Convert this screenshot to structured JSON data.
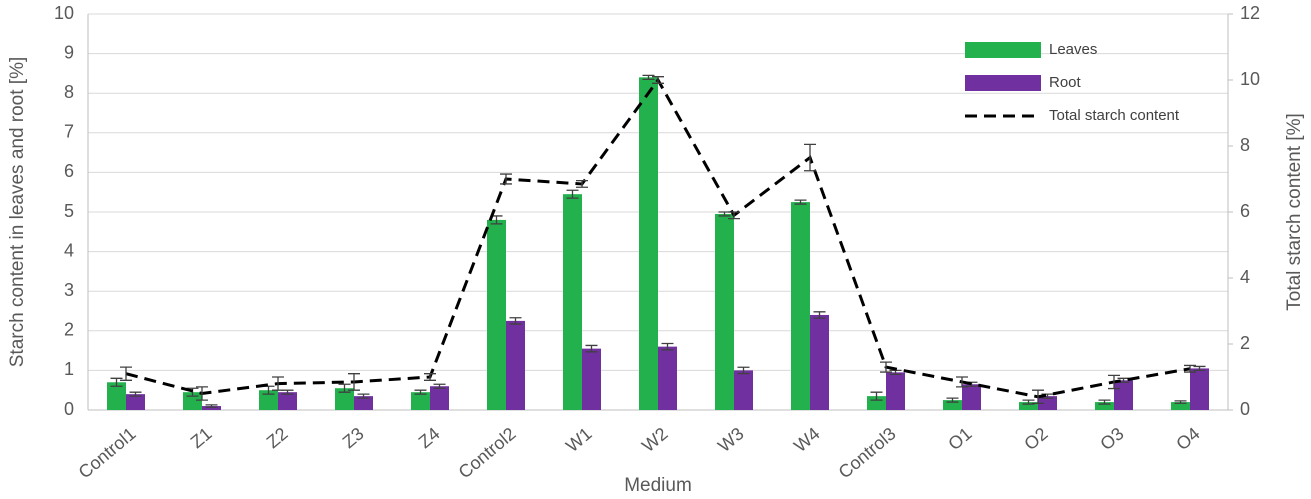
{
  "chart_data": {
    "type": "bar",
    "x_label": "Medium",
    "y_label": "Starch content in leaves and root [%]",
    "y2_label": "Total starch content [%]",
    "categories": [
      "Control1",
      "Z1",
      "Z2",
      "Z3",
      "Z4",
      "Control2",
      "W1",
      "W2",
      "W3",
      "W4",
      "Control3",
      "O1",
      "O2",
      "O3",
      "O4"
    ],
    "series": [
      {
        "name": "Leaves",
        "type": "bar",
        "color": "#22b14c",
        "values": [
          0.7,
          0.45,
          0.5,
          0.55,
          0.45,
          4.8,
          5.45,
          8.4,
          4.95,
          5.25,
          0.35,
          0.25,
          0.2,
          0.2,
          0.2
        ],
        "errors": [
          0.1,
          0.1,
          0.1,
          0.1,
          0.05,
          0.1,
          0.1,
          0.05,
          0.05,
          0.05,
          0.1,
          0.05,
          0.05,
          0.05,
          0.03
        ]
      },
      {
        "name": "Root",
        "type": "bar",
        "color": "#7030a0",
        "values": [
          0.4,
          0.1,
          0.45,
          0.35,
          0.6,
          2.25,
          1.55,
          1.6,
          1.0,
          2.4,
          0.95,
          0.65,
          0.35,
          0.75,
          1.05
        ],
        "errors": [
          0.05,
          0.03,
          0.05,
          0.05,
          0.05,
          0.08,
          0.08,
          0.08,
          0.08,
          0.08,
          0.05,
          0.05,
          0.05,
          0.05,
          0.05
        ]
      },
      {
        "name": "Total starch content",
        "type": "line",
        "axis": "y2",
        "color": "#000000",
        "dashed": true,
        "values": [
          1.1,
          0.5,
          0.8,
          0.85,
          1.0,
          7.0,
          6.85,
          10.0,
          5.9,
          7.65,
          1.3,
          0.85,
          0.4,
          0.85,
          1.25
        ],
        "errors": [
          0.2,
          0.2,
          0.2,
          0.25,
          0.1,
          0.15,
          0.1,
          0.1,
          0.1,
          0.4,
          0.15,
          0.15,
          0.2,
          0.2,
          0.1
        ]
      }
    ],
    "ylim": [
      0,
      10
    ],
    "yticks": [
      0,
      1,
      2,
      3,
      4,
      5,
      6,
      7,
      8,
      9,
      10
    ],
    "y2lim": [
      0,
      12
    ],
    "y2ticks": [
      0,
      2,
      4,
      6,
      8,
      10,
      12
    ],
    "grid": true,
    "legend": "upper right"
  }
}
